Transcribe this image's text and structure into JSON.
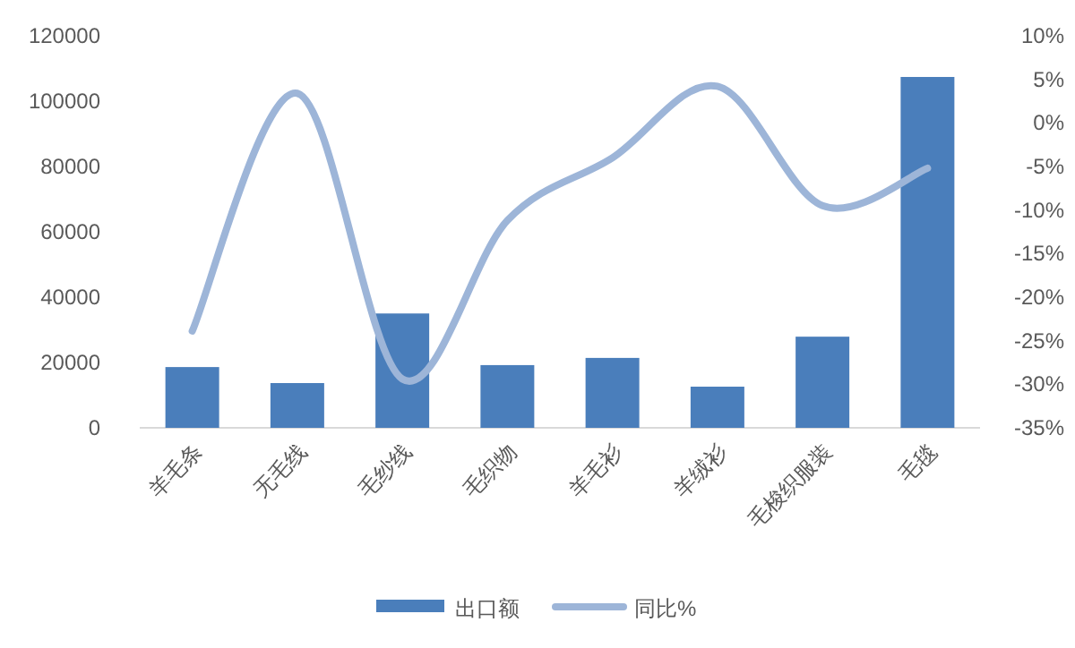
{
  "chart_data": {
    "type": "bar",
    "categories": [
      "羊毛条",
      "无毛线",
      "毛纱线",
      "毛织物",
      "羊毛衫",
      "羊绒衫",
      "毛梭织服装",
      "毛毯"
    ],
    "series": [
      {
        "name": "出口额",
        "color": "#4a7ebb",
        "values": [
          18600,
          13700,
          35000,
          19200,
          21400,
          12600,
          27900,
          107400
        ]
      },
      {
        "name": "同比%",
        "type": "line",
        "axis": "y2",
        "color": "#9db5d8",
        "values": [
          -23.9,
          3.4,
          -29.4,
          -11.2,
          -4.0,
          4.2,
          -9.5,
          -5.2
        ]
      }
    ],
    "ylim": [
      0,
      120000
    ],
    "yticks": [
      0,
      20000,
      40000,
      60000,
      80000,
      100000,
      120000
    ],
    "y2lim": [
      -35,
      10
    ],
    "y2ticks": [
      {
        "value": -35,
        "label": "-35%"
      },
      {
        "value": -30,
        "label": "-30%"
      },
      {
        "value": -25,
        "label": "-25%"
      },
      {
        "value": -20,
        "label": "-20%"
      },
      {
        "value": -15,
        "label": "-15%"
      },
      {
        "value": -10,
        "label": "-10%"
      },
      {
        "value": -5,
        "label": "-5%"
      },
      {
        "value": 0,
        "label": "0%"
      },
      {
        "value": 5,
        "label": "5%"
      },
      {
        "value": 10,
        "label": "10%"
      }
    ],
    "legend": "bottom",
    "line_style": "solid",
    "marker": "none"
  }
}
